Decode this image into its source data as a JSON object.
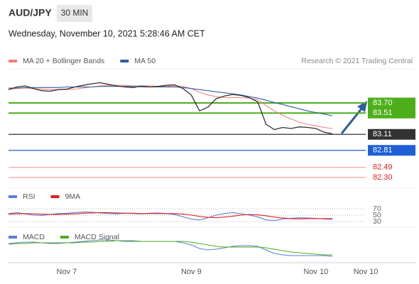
{
  "header": {
    "symbol": "AUD/JPY",
    "timeframe": "30 MIN",
    "date": "Wednesday, November 10, 2021 5:28:46 AM CET",
    "credit": "Research © 2021 Trading Central"
  },
  "chart_data": [
    {
      "type": "line",
      "ylim": [
        82.1,
        84.3
      ],
      "categories": [
        null,
        null,
        null,
        null,
        null,
        null,
        null,
        "Nov 7",
        null,
        null,
        null,
        null,
        null,
        null,
        null,
        null,
        null,
        null,
        null,
        null,
        null,
        null,
        "Nov 9",
        null,
        null,
        null,
        null,
        null,
        null,
        null,
        null,
        null,
        null,
        null,
        null,
        null,
        null,
        "Nov 10",
        null,
        null,
        null,
        null,
        null,
        "Nov 10"
      ],
      "series": [
        {
          "name": "MA 20 + Bollinger Bands",
          "color": "#f08080",
          "values": [
            83.96,
            83.97,
            83.98,
            83.97,
            83.96,
            83.95,
            83.95,
            83.95,
            83.96,
            83.98,
            84.0,
            84.02,
            84.03,
            84.03,
            84.03,
            84.02,
            84.02,
            84.02,
            84.01,
            84.01,
            84.02,
            84.01,
            83.97,
            83.9,
            83.85,
            83.82,
            83.8,
            83.8,
            83.8,
            83.79,
            83.76,
            83.65,
            83.55,
            83.47,
            83.4,
            83.34,
            83.3,
            83.27,
            83.24,
            83.22,
            null,
            null,
            null,
            null
          ]
        },
        {
          "name": "MA 50",
          "color": "#2f5f9e",
          "values": [
            83.98,
            83.98,
            83.99,
            83.99,
            83.99,
            83.99,
            83.99,
            84.0,
            84.0,
            84.0,
            84.0,
            84.01,
            84.01,
            84.01,
            84.01,
            84.01,
            84.0,
            84.0,
            84.0,
            84.0,
            84.0,
            83.99,
            83.97,
            83.95,
            83.93,
            83.91,
            83.89,
            83.87,
            83.85,
            83.82,
            83.79,
            83.75,
            83.71,
            83.67,
            83.63,
            83.59,
            83.55,
            83.52,
            83.49,
            83.46,
            null,
            null,
            null,
            null
          ]
        },
        {
          "color": "#333333",
          "values": [
            83.95,
            84.0,
            84.02,
            83.97,
            83.93,
            83.92,
            83.95,
            83.96,
            84.0,
            84.03,
            84.06,
            84.08,
            84.05,
            84.02,
            84.0,
            83.99,
            84.02,
            84.0,
            84.01,
            84.03,
            84.04,
            83.97,
            83.85,
            83.55,
            83.62,
            83.78,
            83.83,
            83.86,
            83.84,
            83.8,
            83.72,
            83.3,
            83.2,
            83.24,
            83.22,
            83.25,
            83.24,
            83.22,
            83.15,
            83.12,
            null,
            null,
            null,
            null
          ]
        }
      ],
      "levels": {
        "values": [
          83.7,
          83.51,
          83.11,
          82.81,
          82.49,
          82.3
        ],
        "value_labels": [
          "83.70",
          "83.51",
          "83.11",
          "82.81",
          "82.49",
          "82.30"
        ],
        "colors": [
          "#4caf1a",
          "#4caf1a",
          "#333333",
          "#1f5fd6",
          "#f4a0a8",
          "#f4a0a8"
        ]
      }
    },
    {
      "type": "line",
      "ylim": [
        20,
        80
      ],
      "yticks": [
        70,
        50,
        30
      ],
      "grid": true,
      "series": [
        {
          "name": "RSI",
          "color": "#5b7fd6",
          "values": [
            55,
            58,
            54,
            50,
            49,
            52,
            55,
            56,
            58,
            60,
            59,
            57,
            55,
            54,
            56,
            55,
            54,
            56,
            57,
            55,
            52,
            45,
            38,
            35,
            42,
            50,
            55,
            58,
            54,
            50,
            45,
            35,
            33,
            38,
            40,
            42,
            41,
            40,
            38,
            37,
            null,
            null,
            null,
            null
          ]
        },
        {
          "name": "9MA",
          "color": "#e02020",
          "values": [
            53,
            54,
            55,
            54,
            53,
            52,
            52,
            53,
            54,
            56,
            57,
            58,
            58,
            57,
            56,
            56,
            55,
            55,
            55,
            55,
            55,
            53,
            50,
            46,
            43,
            42,
            44,
            47,
            50,
            52,
            51,
            48,
            44,
            41,
            39,
            38,
            39,
            39,
            39,
            39,
            null,
            null,
            null,
            null
          ]
        }
      ]
    },
    {
      "type": "line",
      "ylim": [
        -0.25,
        0.2
      ],
      "series": [
        {
          "name": "MACD",
          "color": "#5b7fd6",
          "values": [
            0.02,
            0.03,
            0.04,
            0.04,
            0.03,
            0.02,
            0.02,
            0.03,
            0.04,
            0.05,
            0.06,
            0.07,
            0.07,
            0.06,
            0.05,
            0.05,
            0.05,
            0.05,
            0.05,
            0.05,
            0.05,
            0.03,
            0.0,
            -0.05,
            -0.07,
            -0.06,
            -0.04,
            -0.02,
            -0.01,
            -0.01,
            -0.02,
            -0.07,
            -0.12,
            -0.14,
            -0.15,
            -0.15,
            -0.15,
            -0.15,
            -0.15,
            -0.16,
            null,
            null,
            null,
            null
          ]
        },
        {
          "name": "MACD Signal",
          "color": "#4caf1a",
          "values": [
            0.01,
            0.02,
            0.02,
            0.03,
            0.03,
            0.03,
            0.03,
            0.03,
            0.03,
            0.04,
            0.04,
            0.05,
            0.05,
            0.06,
            0.06,
            0.06,
            0.05,
            0.05,
            0.05,
            0.05,
            0.05,
            0.05,
            0.04,
            0.02,
            0.0,
            -0.02,
            -0.03,
            -0.03,
            -0.03,
            -0.03,
            -0.03,
            -0.04,
            -0.06,
            -0.08,
            -0.1,
            -0.11,
            -0.12,
            -0.13,
            -0.14,
            -0.14,
            null,
            null,
            null,
            null
          ]
        }
      ]
    }
  ]
}
